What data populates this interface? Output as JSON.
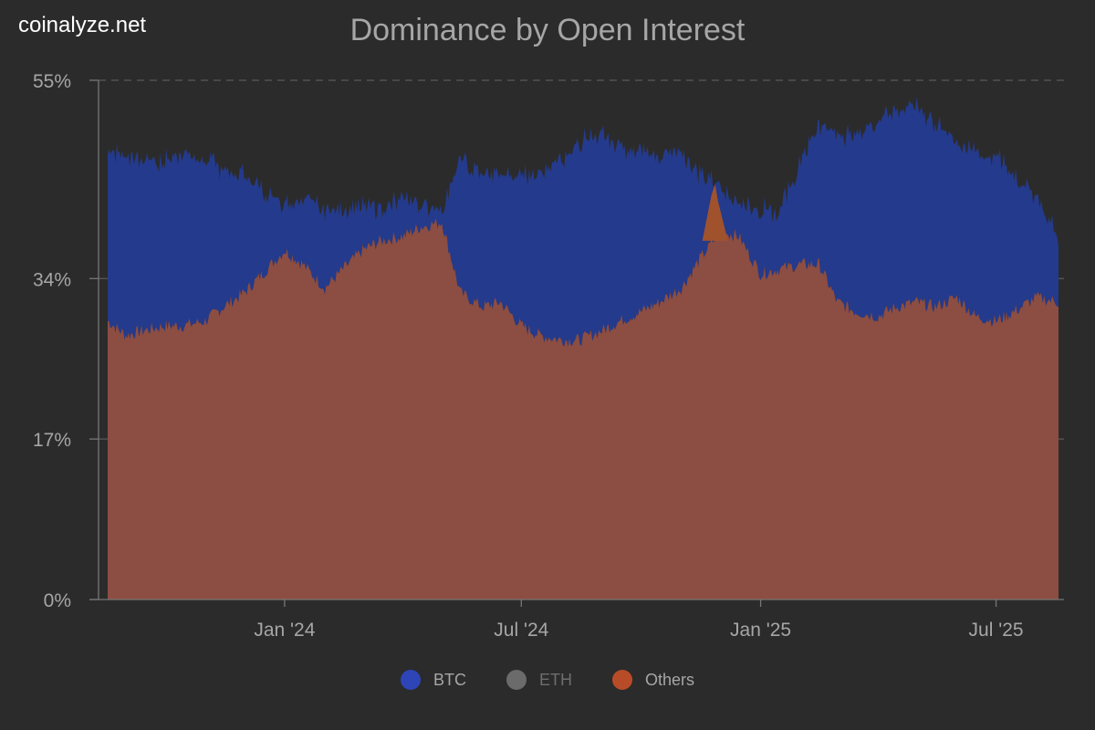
{
  "brand": "coinalyze.net",
  "title": "Dominance by Open Interest",
  "colors": {
    "background": "#2b2b2b",
    "btc_fill": "#243a8c",
    "btc_legend": "#2d45b7",
    "eth_legend": "#6b6b6b",
    "others_fill": "#8c4d42",
    "others_legend": "#b84c28",
    "others_spike": "#a0522d",
    "text_muted": "#a6a6a6",
    "text_dim": "#6e6e6e",
    "grid": "#5a5a5a",
    "axis": "#777777"
  },
  "legend": [
    {
      "name": "BTC",
      "color_key": "btc_legend",
      "active": true
    },
    {
      "name": "ETH",
      "color_key": "eth_legend",
      "active": false
    },
    {
      "name": "Others",
      "color_key": "others_legend",
      "active": true
    }
  ],
  "chart_data": {
    "type": "area",
    "stacking": "stacked",
    "title": "Dominance by Open Interest",
    "xlabel": "",
    "ylabel": "",
    "ylim": [
      0,
      55
    ],
    "y_ticks": [
      {
        "value": 0,
        "label": "0%"
      },
      {
        "value": 17,
        "label": "17%"
      },
      {
        "value": 34,
        "label": "34%"
      },
      {
        "value": 55,
        "label": "55%"
      }
    ],
    "x_ticks": [
      {
        "value": "2024-01-01",
        "label": "Jan '24"
      },
      {
        "value": "2024-07-01",
        "label": "Jul '24"
      },
      {
        "value": "2025-01-01",
        "label": "Jan '25"
      },
      {
        "value": "2025-07-01",
        "label": "Jul '25"
      }
    ],
    "x_range": [
      "2023-08-18",
      "2025-08-18"
    ],
    "grid": true,
    "legend_position": "bottom",
    "x": [
      "2023-08-18",
      "2023-09-01",
      "2023-09-15",
      "2023-10-01",
      "2023-10-15",
      "2023-11-01",
      "2023-11-15",
      "2023-12-01",
      "2023-12-15",
      "2024-01-01",
      "2024-01-15",
      "2024-02-01",
      "2024-02-15",
      "2024-03-01",
      "2024-03-15",
      "2024-04-01",
      "2024-04-15",
      "2024-05-01",
      "2024-05-15",
      "2024-06-01",
      "2024-06-15",
      "2024-07-01",
      "2024-07-15",
      "2024-08-01",
      "2024-08-15",
      "2024-09-01",
      "2024-09-15",
      "2024-10-01",
      "2024-10-15",
      "2024-11-01",
      "2024-11-15",
      "2024-12-01",
      "2024-12-15",
      "2025-01-01",
      "2025-01-15",
      "2025-02-01",
      "2025-02-15",
      "2025-03-01",
      "2025-03-15",
      "2025-04-01",
      "2025-04-15",
      "2025-05-01",
      "2025-05-15",
      "2025-06-01",
      "2025-06-15",
      "2025-07-01",
      "2025-07-15",
      "2025-08-01",
      "2025-08-18"
    ],
    "series": [
      {
        "name": "Others",
        "color_key": "others_fill",
        "values": [
          29.5,
          28.0,
          28.5,
          29.0,
          29.0,
          29.5,
          31.0,
          32.5,
          34.5,
          37.0,
          35.5,
          33.0,
          35.0,
          37.0,
          38.0,
          38.5,
          39.5,
          40.0,
          32.5,
          31.0,
          31.5,
          29.0,
          28.0,
          27.5,
          27.5,
          28.5,
          29.5,
          30.5,
          31.5,
          33.0,
          36.0,
          39.0,
          38.5,
          34.5,
          35.0,
          35.5,
          35.5,
          31.5,
          30.5,
          30.0,
          31.0,
          31.5,
          31.0,
          32.0,
          30.0,
          29.5,
          30.5,
          32.0,
          31.5
        ]
      },
      {
        "name": "BTC",
        "color_key": "btc_fill",
        "values": [
          18.0,
          19.0,
          18.0,
          17.5,
          18.5,
          17.0,
          14.5,
          12.5,
          9.0,
          5.0,
          7.0,
          8.5,
          6.0,
          4.5,
          3.5,
          4.0,
          2.5,
          1.5,
          14.0,
          14.0,
          13.5,
          16.0,
          17.5,
          19.0,
          21.0,
          21.0,
          18.5,
          17.0,
          15.5,
          14.5,
          9.0,
          5.0,
          3.5,
          7.0,
          6.0,
          11.0,
          15.0,
          17.5,
          19.0,
          21.0,
          21.0,
          20.5,
          19.5,
          16.5,
          17.5,
          17.5,
          14.5,
          10.5,
          7.0
        ]
      },
      {
        "name": "ETH",
        "color_key": "eth_legend",
        "values": [
          0,
          0,
          0,
          0,
          0,
          0,
          0,
          0,
          0,
          0,
          0,
          0,
          0,
          0,
          0,
          0,
          0,
          0,
          0,
          0,
          0,
          0,
          0,
          0,
          0,
          0,
          0,
          0,
          0,
          0,
          0,
          0,
          0,
          0,
          0,
          0,
          0,
          0,
          0,
          0,
          0,
          0,
          0,
          0,
          0,
          0,
          0,
          0,
          0
        ],
        "hidden": true
      }
    ],
    "annotations": [
      {
        "type": "spike",
        "series": "Others",
        "x": "2024-11-27",
        "value": 44.0
      }
    ]
  }
}
